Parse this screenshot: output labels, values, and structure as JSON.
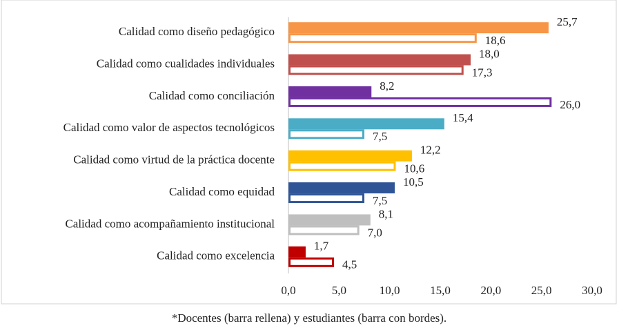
{
  "chart_data": {
    "type": "bar",
    "orientation": "horizontal",
    "categories": [
      "Calidad como diseño pedagógico",
      "Calidad como cualidades individuales",
      "Calidad como conciliación ",
      "Calidad como valor de aspectos tecnológicos",
      "Calidad como virtud de la práctica docente",
      "Calidad como equidad",
      "Calidad como acompañamiento institucional",
      "Calidad como excelencia"
    ],
    "colors": [
      "#f79646",
      "#c0504d",
      "#7030a0",
      "#4bacc6",
      "#ffc000",
      "#2f5597",
      "#bfbfbf",
      "#c00000"
    ],
    "series": [
      {
        "style": "filled",
        "values": [
          25.7,
          18.0,
          8.2,
          15.4,
          12.2,
          10.5,
          8.1,
          1.7
        ],
        "value_labels": [
          "25,7",
          "18,0",
          "8,2",
          "15,4",
          "12,2",
          "10,5",
          "8,1",
          "1,7"
        ]
      },
      {
        "style": "outlined",
        "values": [
          18.6,
          17.3,
          26.0,
          7.5,
          10.6,
          7.5,
          7.0,
          4.5
        ],
        "value_labels": [
          "18,6",
          "17,3",
          "26,0",
          "7,5",
          "10,6",
          "7,5",
          "7,0",
          "4,5"
        ]
      }
    ],
    "xlim": [
      0,
      30
    ],
    "xticks": [
      {
        "value": 0,
        "label": "0,0"
      },
      {
        "value": 5,
        "label": "5,0"
      },
      {
        "value": 10,
        "label": "10,0"
      },
      {
        "value": 15,
        "label": "15,0"
      },
      {
        "value": 20,
        "label": "20,0"
      },
      {
        "value": 25,
        "label": "25,0"
      },
      {
        "value": 30,
        "label": "30,0"
      }
    ],
    "note": "*Docentes (barra rellena) y estudiantes (barra con bordes)."
  }
}
